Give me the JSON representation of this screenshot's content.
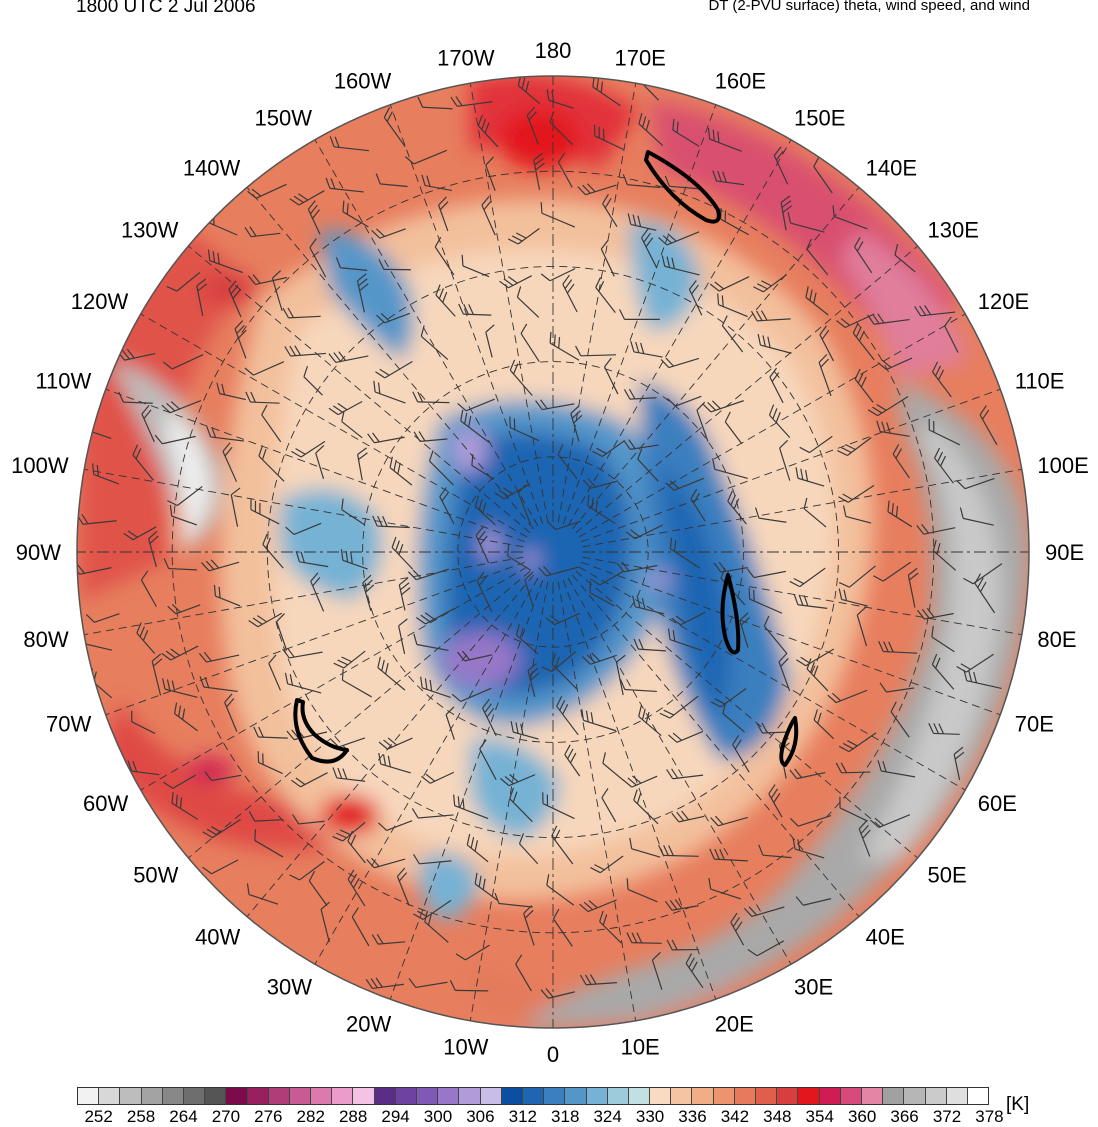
{
  "header": {
    "time": "1800 UTC 2 Jul 2006",
    "product": "DT (2-PVU surface) theta, wind speed, and wind"
  },
  "map": {
    "projection": "north polar stereographic",
    "longitude_labels": [
      "180",
      "170E",
      "160E",
      "150E",
      "140E",
      "130E",
      "120E",
      "110E",
      "100E",
      "90E",
      "80E",
      "70E",
      "60E",
      "50E",
      "40E",
      "30E",
      "20E",
      "10E",
      "0",
      "10W",
      "20W",
      "30W",
      "40W",
      "50W",
      "60W",
      "70W",
      "80W",
      "90W",
      "100W",
      "110W",
      "120W",
      "130W",
      "140W",
      "150W",
      "160W",
      "170W"
    ],
    "jet_contour_color": "#000000"
  },
  "colorbar": {
    "units": "[K]",
    "tick_labels": [
      "252",
      "258",
      "264",
      "270",
      "276",
      "282",
      "288",
      "294",
      "300",
      "306",
      "312",
      "318",
      "324",
      "330",
      "336",
      "342",
      "348",
      "354",
      "360",
      "366",
      "372",
      "378"
    ],
    "colors": [
      "#f2f2f2",
      "#d8d8d8",
      "#bdbdbd",
      "#a3a3a3",
      "#888888",
      "#6e6e6e",
      "#555555",
      "#7d0a4a",
      "#98205f",
      "#b03c78",
      "#c85a94",
      "#dc7ab0",
      "#ec9ccb",
      "#f4c2e4",
      "#5a2d86",
      "#6d42a0",
      "#8058b6",
      "#9877c8",
      "#b19bd8",
      "#c8bde6",
      "#0b4ea2",
      "#1f65b2",
      "#3a7fbf",
      "#5596c9",
      "#76b2d4",
      "#9dcbdb",
      "#c2e0e4",
      "#f8dcc1",
      "#f5c5a1",
      "#f1ad86",
      "#ec946d",
      "#e67a5a",
      "#df5e4c",
      "#d83e40",
      "#e3161b",
      "#cf1c54",
      "#d94a7c",
      "#e585a5",
      "#a1a1a1",
      "#b6b6b6",
      "#cbcbcb",
      "#dfdfdf",
      "#ffffff"
    ]
  }
}
